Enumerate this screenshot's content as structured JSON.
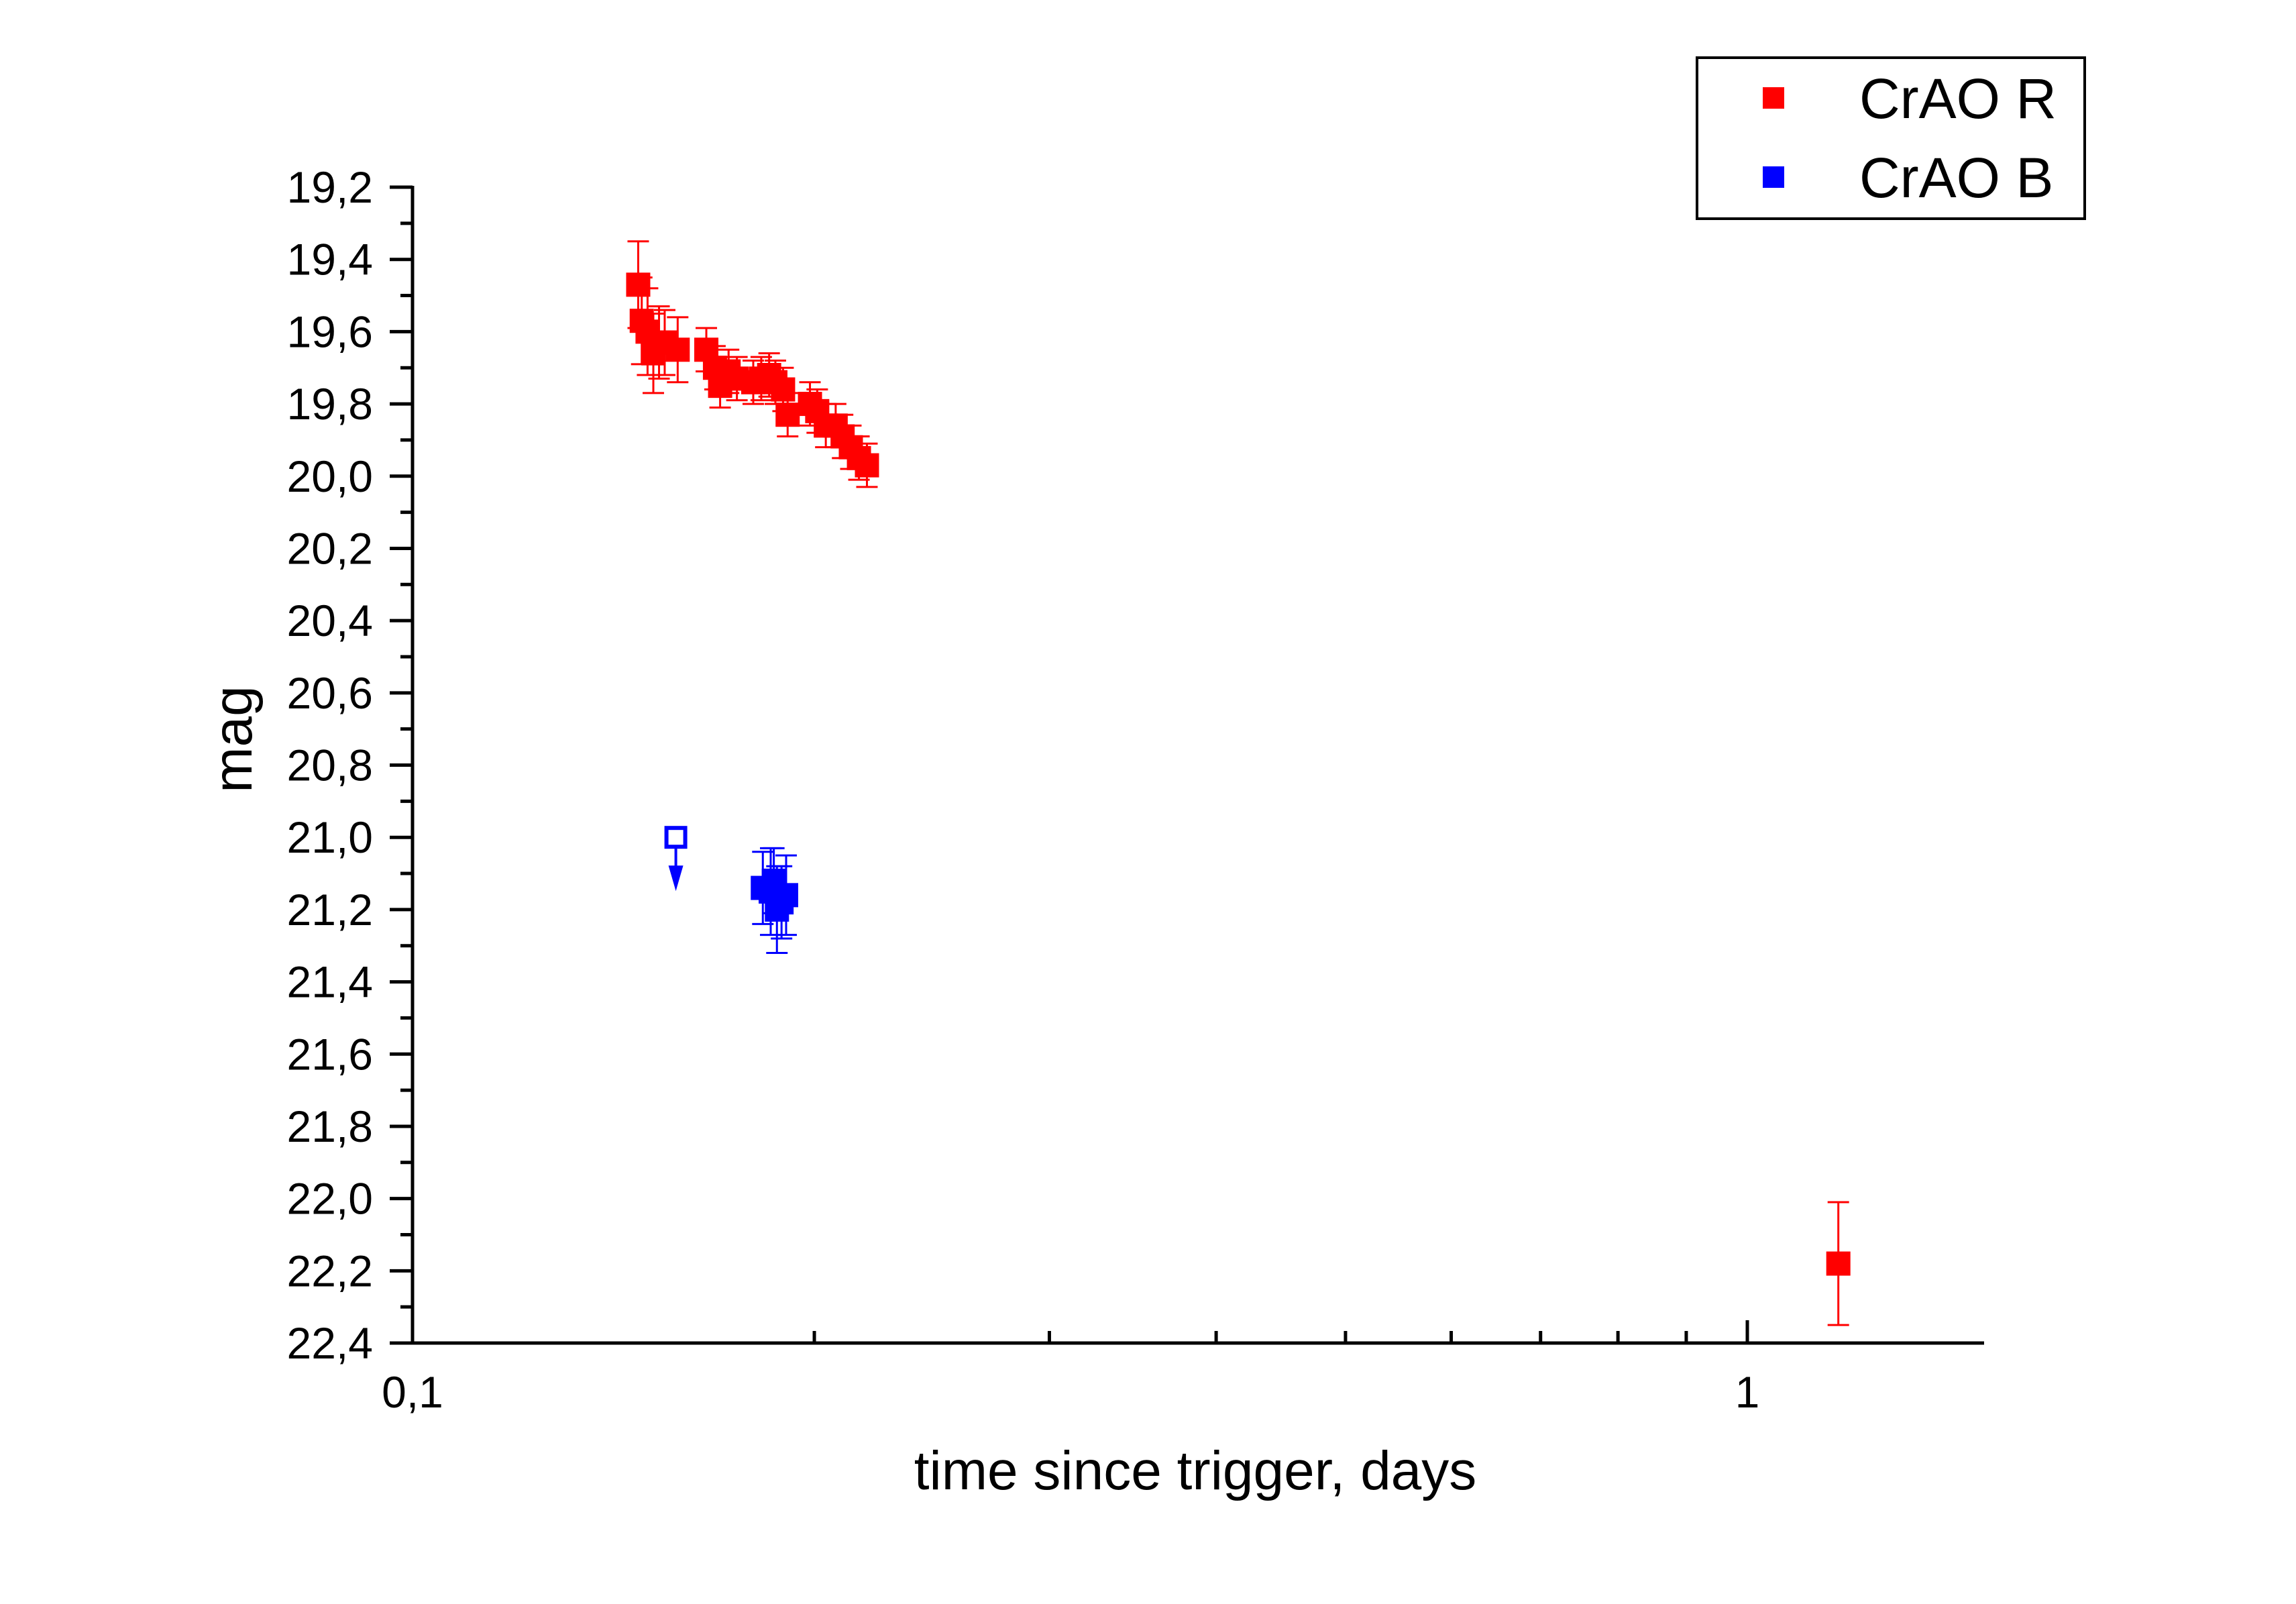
{
  "chart_data": {
    "type": "scatter",
    "xlabel": "time since trigger, days",
    "ylabel": "mag",
    "x_scale": "log",
    "xlim": [
      0.1,
      1.5
    ],
    "ylim": [
      19.2,
      22.4
    ],
    "y_inverted": true,
    "x_ticks": [
      {
        "value": 0.1,
        "label": "0,1"
      },
      {
        "value": 1,
        "label": "1"
      }
    ],
    "y_ticks": [
      {
        "value": 19.2,
        "label": "19,2"
      },
      {
        "value": 19.4,
        "label": "19,4"
      },
      {
        "value": 19.6,
        "label": "19,6"
      },
      {
        "value": 19.8,
        "label": "19,8"
      },
      {
        "value": 20.0,
        "label": "20,0"
      },
      {
        "value": 20.2,
        "label": "20,2"
      },
      {
        "value": 20.4,
        "label": "20,4"
      },
      {
        "value": 20.6,
        "label": "20,6"
      },
      {
        "value": 20.8,
        "label": "20,8"
      },
      {
        "value": 21.0,
        "label": "21,0"
      },
      {
        "value": 21.2,
        "label": "21,2"
      },
      {
        "value": 21.4,
        "label": "21,4"
      },
      {
        "value": 21.6,
        "label": "21,6"
      },
      {
        "value": 21.8,
        "label": "21,8"
      },
      {
        "value": 22.0,
        "label": "22,0"
      },
      {
        "value": 22.2,
        "label": "22,2"
      },
      {
        "value": 22.4,
        "label": "22,4"
      }
    ],
    "grid": false,
    "legend_position": "top-right",
    "series": [
      {
        "name": "CrAO R",
        "color": "#ff0000",
        "marker": "filled-square",
        "points": [
          {
            "x": 0.1476,
            "y": 19.47,
            "err": 0.12
          },
          {
            "x": 0.1485,
            "y": 19.57,
            "err": 0.12
          },
          {
            "x": 0.15,
            "y": 19.6,
            "err": 0.12
          },
          {
            "x": 0.1515,
            "y": 19.66,
            "err": 0.11
          },
          {
            "x": 0.153,
            "y": 19.63,
            "err": 0.1
          },
          {
            "x": 0.1545,
            "y": 19.63,
            "err": 0.09
          },
          {
            "x": 0.158,
            "y": 19.65,
            "err": 0.09
          },
          {
            "x": 0.166,
            "y": 19.65,
            "err": 0.06
          },
          {
            "x": 0.1685,
            "y": 19.7,
            "err": 0.06
          },
          {
            "x": 0.17,
            "y": 19.75,
            "err": 0.06
          },
          {
            "x": 0.1725,
            "y": 19.71,
            "err": 0.06
          },
          {
            "x": 0.175,
            "y": 19.73,
            "err": 0.06
          },
          {
            "x": 0.18,
            "y": 19.74,
            "err": 0.06
          },
          {
            "x": 0.1825,
            "y": 19.73,
            "err": 0.06
          },
          {
            "x": 0.185,
            "y": 19.72,
            "err": 0.06
          },
          {
            "x": 0.187,
            "y": 19.74,
            "err": 0.06
          },
          {
            "x": 0.1895,
            "y": 19.76,
            "err": 0.06
          },
          {
            "x": 0.191,
            "y": 19.83,
            "err": 0.06
          },
          {
            "x": 0.1985,
            "y": 19.8,
            "err": 0.06
          },
          {
            "x": 0.201,
            "y": 19.82,
            "err": 0.06
          },
          {
            "x": 0.204,
            "y": 19.86,
            "err": 0.06
          },
          {
            "x": 0.2075,
            "y": 19.86,
            "err": 0.06
          },
          {
            "x": 0.21,
            "y": 19.89,
            "err": 0.06
          },
          {
            "x": 0.213,
            "y": 19.92,
            "err": 0.06
          },
          {
            "x": 0.216,
            "y": 19.95,
            "err": 0.06
          },
          {
            "x": 0.219,
            "y": 19.97,
            "err": 0.06
          },
          {
            "x": 1.17,
            "y": 22.18,
            "err": 0.17
          }
        ]
      },
      {
        "name": "CrAO B",
        "color": "#0000ff",
        "marker": "filled-square",
        "points": [
          {
            "x": 0.183,
            "y": 21.14,
            "err": 0.1
          },
          {
            "x": 0.1855,
            "y": 21.15,
            "err": 0.12
          },
          {
            "x": 0.1865,
            "y": 21.12,
            "err": 0.09
          },
          {
            "x": 0.1875,
            "y": 21.2,
            "err": 0.12
          },
          {
            "x": 0.189,
            "y": 21.18,
            "err": 0.1
          },
          {
            "x": 0.1905,
            "y": 21.16,
            "err": 0.11
          }
        ],
        "upper_limits": [
          {
            "x": 0.1575,
            "y": 21.0
          }
        ]
      }
    ]
  }
}
